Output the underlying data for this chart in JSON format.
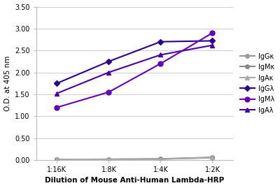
{
  "x_labels": [
    "1:16K",
    "1:8K",
    "1:4K",
    "1:2K"
  ],
  "x_values": [
    0,
    1,
    2,
    3
  ],
  "series": {
    "IgGκ": {
      "values": [
        0.01,
        0.015,
        0.02,
        0.05
      ],
      "color": "#999999",
      "marker": "o",
      "markersize": 4
    },
    "IgMκ": {
      "values": [
        0.01,
        0.015,
        0.025,
        0.06
      ],
      "color": "#888888",
      "marker": "o",
      "markersize": 4
    },
    "IgAκ": {
      "values": [
        0.01,
        0.015,
        0.02,
        0.055
      ],
      "color": "#aaaaaa",
      "marker": "^",
      "markersize": 4
    },
    "IgGλ": {
      "values": [
        1.75,
        2.25,
        2.7,
        2.72
      ],
      "color": "#2a0090",
      "marker": "D",
      "markersize": 4
    },
    "IgMλ": {
      "values": [
        1.2,
        1.55,
        2.2,
        2.9
      ],
      "color": "#6600bb",
      "marker": "o",
      "markersize": 5
    },
    "IgAλ": {
      "values": [
        1.52,
        2.0,
        2.4,
        2.62
      ],
      "color": "#4400aa",
      "marker": "^",
      "markersize": 4
    }
  },
  "ylabel": "O.D. at 405 nm",
  "xlabel": "Dilution of Mouse Anti-Human Lambda-HRP",
  "ylim": [
    0.0,
    3.5
  ],
  "yticks": [
    0.0,
    0.5,
    1.0,
    1.5,
    2.0,
    2.5,
    3.0,
    3.5
  ],
  "background_color": "#ffffff",
  "grid_color": "#cccccc"
}
